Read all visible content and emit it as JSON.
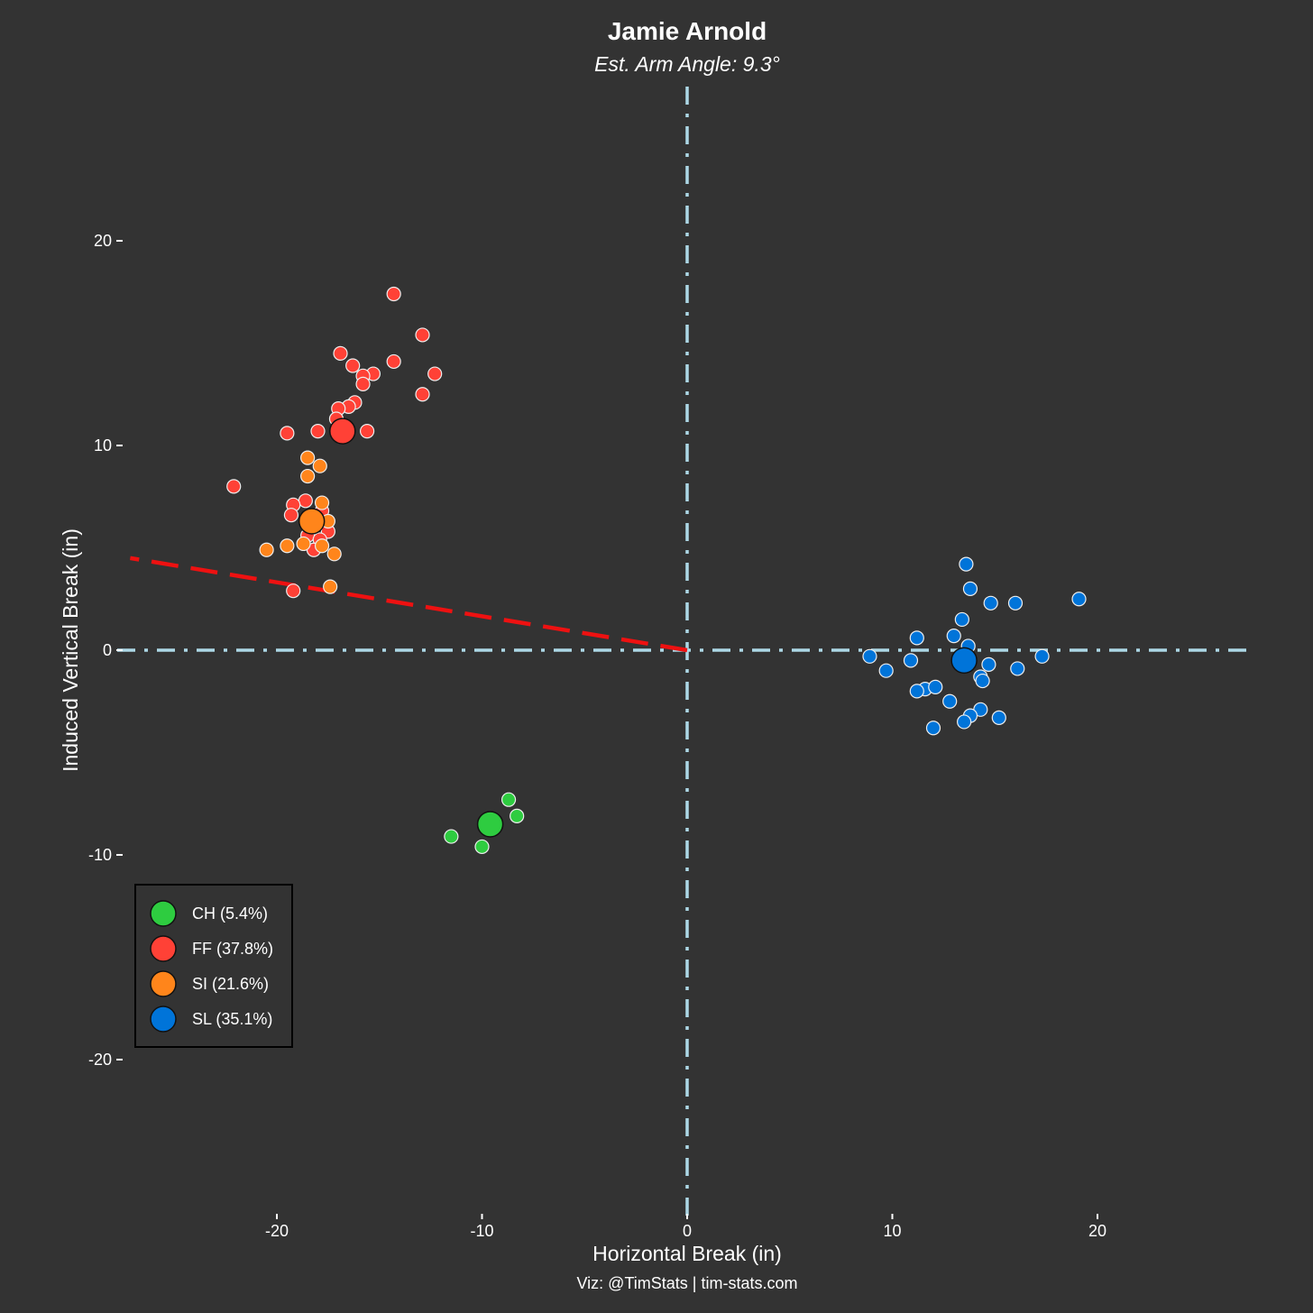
{
  "chart_data": {
    "type": "scatter",
    "title": "Jamie Arnold",
    "subtitle": "Est. Arm Angle: 9.3°",
    "xlabel": "Horizontal Break (in)",
    "ylabel": "Induced Vertical Break (in)",
    "caption": "Viz: @TimStats | tim-stats.com",
    "xlim": [
      -27.5,
      27.5
    ],
    "ylim": [
      -27.5,
      27.5
    ],
    "xticks": [
      -20,
      -10,
      0,
      10,
      20
    ],
    "yticks": [
      20,
      10,
      0,
      -10,
      -20
    ],
    "xtick_labels": [
      "-20",
      "-10",
      "0",
      "10",
      "20"
    ],
    "ytick_labels": [
      "20",
      "10",
      "0",
      "-10",
      "-20"
    ],
    "grid": false,
    "legend_position": "bottom-left",
    "arm_angle_line": {
      "color": "#ee1111",
      "from": [
        0,
        0
      ],
      "to": [
        -27.5,
        4.5
      ]
    },
    "reference_line_color": "#add8e6",
    "series": [
      {
        "name": "CH",
        "legend": "CH (5.4%)",
        "color": "#2ecc40",
        "mean": [
          -9.6,
          -8.5
        ],
        "points": [
          [
            -11.5,
            -9.1
          ],
          [
            -10.0,
            -9.6
          ],
          [
            -8.7,
            -7.3
          ],
          [
            -8.3,
            -8.1
          ]
        ]
      },
      {
        "name": "FF",
        "legend": "FF (37.8%)",
        "color": "#ff4136",
        "mean": [
          -16.8,
          10.7
        ],
        "points": [
          [
            -14.3,
            17.4
          ],
          [
            -12.9,
            15.4
          ],
          [
            -16.9,
            14.5
          ],
          [
            -16.3,
            13.9
          ],
          [
            -14.3,
            14.1
          ],
          [
            -15.3,
            13.5
          ],
          [
            -15.8,
            13.4
          ],
          [
            -12.3,
            13.5
          ],
          [
            -15.8,
            13.0
          ],
          [
            -12.9,
            12.5
          ],
          [
            -16.2,
            12.1
          ],
          [
            -16.5,
            11.9
          ],
          [
            -17.0,
            11.8
          ],
          [
            -17.1,
            11.3
          ],
          [
            -15.6,
            10.7
          ],
          [
            -18.0,
            10.7
          ],
          [
            -19.5,
            10.6
          ],
          [
            -22.1,
            8.0
          ],
          [
            -18.6,
            7.3
          ],
          [
            -19.2,
            7.1
          ],
          [
            -17.8,
            6.8
          ],
          [
            -19.3,
            6.6
          ],
          [
            -17.5,
            5.8
          ],
          [
            -18.5,
            5.6
          ],
          [
            -17.9,
            5.4
          ],
          [
            -18.2,
            4.9
          ],
          [
            -19.2,
            2.9
          ]
        ]
      },
      {
        "name": "SI",
        "legend": "SI (21.6%)",
        "color": "#ff851b",
        "mean": [
          -18.3,
          6.3
        ],
        "points": [
          [
            -18.5,
            9.4
          ],
          [
            -17.9,
            9.0
          ],
          [
            -18.5,
            8.5
          ],
          [
            -17.8,
            7.2
          ],
          [
            -17.5,
            6.3
          ],
          [
            -18.7,
            5.2
          ],
          [
            -19.5,
            5.1
          ],
          [
            -17.8,
            5.1
          ],
          [
            -17.2,
            4.7
          ],
          [
            -20.5,
            4.9
          ],
          [
            -17.4,
            3.1
          ]
        ]
      },
      {
        "name": "SL",
        "legend": "SL (35.1%)",
        "color": "#0074d9",
        "mean": [
          13.5,
          -0.5
        ],
        "points": [
          [
            13.6,
            4.2
          ],
          [
            13.8,
            3.0
          ],
          [
            14.8,
            2.3
          ],
          [
            16.0,
            2.3
          ],
          [
            19.1,
            2.5
          ],
          [
            13.4,
            1.5
          ],
          [
            11.2,
            0.6
          ],
          [
            13.0,
            0.7
          ],
          [
            13.7,
            0.2
          ],
          [
            8.9,
            -0.3
          ],
          [
            9.7,
            -1.0
          ],
          [
            10.9,
            -0.5
          ],
          [
            14.7,
            -0.7
          ],
          [
            16.1,
            -0.9
          ],
          [
            17.3,
            -0.3
          ],
          [
            14.3,
            -1.3
          ],
          [
            14.4,
            -1.5
          ],
          [
            11.6,
            -1.9
          ],
          [
            11.2,
            -2.0
          ],
          [
            12.1,
            -1.8
          ],
          [
            12.8,
            -2.5
          ],
          [
            14.3,
            -2.9
          ],
          [
            13.8,
            -3.2
          ],
          [
            13.5,
            -3.5
          ],
          [
            15.2,
            -3.3
          ],
          [
            12.0,
            -3.8
          ]
        ]
      }
    ]
  }
}
